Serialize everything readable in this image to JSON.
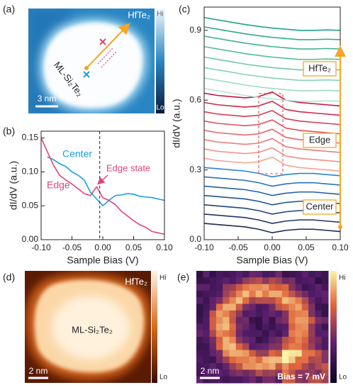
{
  "chart_data": [
    {
      "type": "image",
      "panel": "(a)",
      "material": "HfTe₂",
      "sample": "ML-Si₂Te₂",
      "scale_bar": "3 nm",
      "colorbar_high": "Hi",
      "colorbar_low": "Lo"
    },
    {
      "type": "line",
      "panel": "(b)",
      "xlabel": "Sample Bias (V)",
      "ylabel": "dI/dV (a.u.)",
      "xlim": [
        -0.1,
        0.1
      ],
      "ylim": [
        0,
        0.16
      ],
      "xticks": [
        {
          "value": -0.1,
          "label": "-0.10"
        },
        -0.05,
        {
          "value": 0,
          "label": "0.00"
        },
        0.05,
        {
          "value": 0.1,
          "label": "0.10"
        }
      ],
      "yticks": [
        {
          "value": 0,
          "label": "0.00"
        },
        0.05,
        {
          "value": 0.1,
          "label": "0.10"
        },
        0.15
      ],
      "x": [
        -0.1,
        -0.09,
        -0.08,
        -0.07,
        -0.06,
        -0.05,
        -0.04,
        -0.03,
        -0.02,
        -0.01,
        0,
        0.01,
        0.02,
        0.03,
        0.04,
        0.05,
        0.06,
        0.07,
        0.08,
        0.09,
        0.1
      ],
      "vline_x": -0.005,
      "annotation": "Edge state",
      "series": [
        {
          "name": "Center",
          "color": "#1a9fe0",
          "values": [
            null,
            0.122,
            0.118,
            0.112,
            0.108,
            0.1,
            0.095,
            0.088,
            0.07,
            0.06,
            0.05,
            0.058,
            0.065,
            0.066,
            0.068,
            0.067,
            0.064,
            0.063,
            0.062,
            0.06,
            0.058
          ]
        },
        {
          "name": "Edge",
          "color": "#e0457b",
          "values": [
            0.15,
            0.13,
            0.11,
            0.095,
            0.088,
            0.082,
            0.075,
            0.068,
            0.065,
            0.078,
            0.062,
            0.058,
            0.052,
            0.042,
            0.035,
            0.028,
            0.022,
            0.018,
            0.012,
            0.01,
            0.008
          ]
        }
      ]
    },
    {
      "type": "line",
      "panel": "(c)",
      "xlabel": "Sample Bias (V)",
      "ylabel": "dI/dV (a.u.)",
      "xlim": [
        -0.1,
        0.1
      ],
      "ylim": [
        0,
        1.0
      ],
      "xticks": [
        {
          "value": -0.1,
          "label": "-0.10"
        },
        -0.05,
        {
          "value": 0,
          "label": "0.00"
        },
        0.05,
        {
          "value": 0.1,
          "label": "0.10"
        }
      ],
      "yticks": [
        {
          "value": 0,
          "label": "0.0"
        },
        0.3,
        0.6,
        0.9
      ],
      "x": [
        -0.1,
        -0.08,
        -0.06,
        -0.04,
        -0.02,
        0,
        0.02,
        0.04,
        0.06,
        0.08,
        0.1
      ],
      "annotations": [
        "HfTe₂",
        "Edge",
        "Center"
      ],
      "series": [
        {
          "color": "#1b2a55",
          "values": [
            0.07,
            0.065,
            0.06,
            0.055,
            0.045,
            0.03,
            0.04,
            0.045,
            0.045,
            0.04,
            0.035
          ]
        },
        {
          "color": "#1e3566",
          "values": [
            0.11,
            0.105,
            0.1,
            0.095,
            0.085,
            0.07,
            0.08,
            0.085,
            0.085,
            0.08,
            0.075
          ]
        },
        {
          "color": "#204379",
          "values": [
            0.15,
            0.145,
            0.14,
            0.135,
            0.125,
            0.11,
            0.12,
            0.125,
            0.125,
            0.12,
            0.115
          ]
        },
        {
          "color": "#22528f",
          "values": [
            0.19,
            0.185,
            0.18,
            0.175,
            0.165,
            0.15,
            0.16,
            0.165,
            0.165,
            0.16,
            0.155
          ]
        },
        {
          "color": "#2462a7",
          "values": [
            0.23,
            0.225,
            0.22,
            0.215,
            0.205,
            0.19,
            0.2,
            0.205,
            0.205,
            0.2,
            0.195
          ]
        },
        {
          "color": "#2772bd",
          "values": [
            0.27,
            0.265,
            0.26,
            0.255,
            0.245,
            0.23,
            0.24,
            0.245,
            0.245,
            0.24,
            0.235
          ]
        },
        {
          "color": "#2c84d2",
          "values": [
            0.31,
            0.305,
            0.3,
            0.295,
            0.285,
            0.27,
            0.28,
            0.285,
            0.285,
            0.28,
            0.275
          ]
        },
        {
          "color": "#f4a493",
          "values": [
            0.35,
            0.34,
            0.335,
            0.33,
            0.335,
            0.355,
            0.32,
            0.31,
            0.305,
            0.3,
            0.295
          ]
        },
        {
          "color": "#f08f84",
          "values": [
            0.39,
            0.38,
            0.375,
            0.37,
            0.375,
            0.395,
            0.36,
            0.35,
            0.345,
            0.34,
            0.335
          ]
        },
        {
          "color": "#ec7a76",
          "values": [
            0.43,
            0.42,
            0.415,
            0.41,
            0.415,
            0.435,
            0.4,
            0.39,
            0.385,
            0.38,
            0.375
          ]
        },
        {
          "color": "#e66569",
          "values": [
            0.47,
            0.46,
            0.455,
            0.45,
            0.455,
            0.475,
            0.44,
            0.43,
            0.425,
            0.42,
            0.415
          ]
        },
        {
          "color": "#df505d",
          "values": [
            0.51,
            0.5,
            0.495,
            0.49,
            0.495,
            0.515,
            0.48,
            0.47,
            0.465,
            0.46,
            0.455
          ]
        },
        {
          "color": "#d73c53",
          "values": [
            0.55,
            0.54,
            0.535,
            0.53,
            0.535,
            0.555,
            0.52,
            0.51,
            0.505,
            0.5,
            0.495
          ]
        },
        {
          "color": "#cf2749",
          "values": [
            0.59,
            0.58,
            0.575,
            0.57,
            0.575,
            0.595,
            0.56,
            0.55,
            0.545,
            0.54,
            0.535
          ]
        },
        {
          "color": "#c8123f",
          "values": [
            0.63,
            0.62,
            0.615,
            0.61,
            0.615,
            0.635,
            0.6,
            0.59,
            0.585,
            0.58,
            0.575
          ]
        },
        {
          "color": "#b5e6d8",
          "values": [
            0.65,
            0.64,
            0.63,
            0.62,
            0.612,
            0.605,
            0.6,
            0.595,
            0.595,
            0.597,
            0.595
          ]
        },
        {
          "color": "#9edcca",
          "values": [
            0.695,
            0.685,
            0.675,
            0.665,
            0.657,
            0.65,
            0.645,
            0.64,
            0.64,
            0.642,
            0.64
          ]
        },
        {
          "color": "#86d2bc",
          "values": [
            0.74,
            0.73,
            0.72,
            0.71,
            0.702,
            0.695,
            0.69,
            0.685,
            0.685,
            0.687,
            0.685
          ]
        },
        {
          "color": "#6ec8ae",
          "values": [
            0.785,
            0.775,
            0.765,
            0.755,
            0.747,
            0.74,
            0.735,
            0.73,
            0.73,
            0.732,
            0.73
          ]
        },
        {
          "color": "#57bda1",
          "values": [
            0.83,
            0.82,
            0.81,
            0.8,
            0.792,
            0.785,
            0.78,
            0.775,
            0.775,
            0.777,
            0.775
          ]
        },
        {
          "color": "#42b396",
          "values": [
            0.875,
            0.865,
            0.855,
            0.845,
            0.837,
            0.83,
            0.825,
            0.82,
            0.82,
            0.822,
            0.82
          ]
        },
        {
          "color": "#30aa8e",
          "values": [
            0.915,
            0.905,
            0.895,
            0.885,
            0.877,
            0.87,
            0.865,
            0.86,
            0.86,
            0.862,
            0.86
          ]
        },
        {
          "color": "#1ea58a",
          "values": [
            0.955,
            0.945,
            0.935,
            0.925,
            0.917,
            0.91,
            0.905,
            0.9,
            0.9,
            0.902,
            0.9
          ]
        }
      ]
    },
    {
      "type": "image",
      "panel": "(d)",
      "material": "HfTe₂",
      "sample": "ML-Si₂Te₂",
      "scale_bar": "2 nm",
      "colorbar_high": "Hi",
      "colorbar_low": "Lo"
    },
    {
      "type": "image",
      "panel": "(e)",
      "scale_bar": "2 nm",
      "bias": "Bias = 7 mV",
      "colorbar_high": "Hi",
      "colorbar_low": "Lo"
    }
  ]
}
